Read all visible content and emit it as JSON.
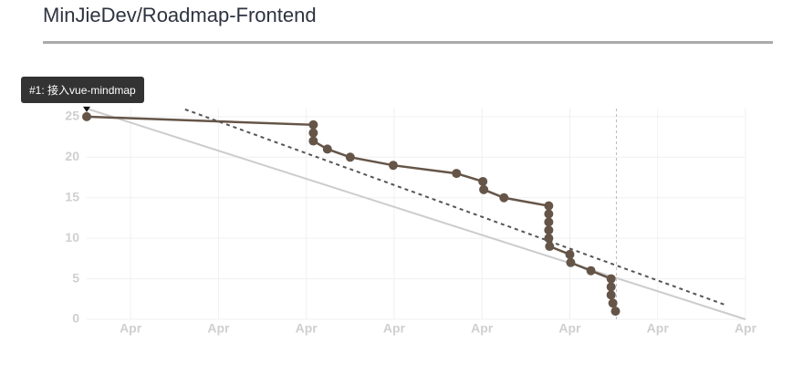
{
  "page_title": "MinJieDev/Roadmap-Frontend",
  "chart_data": {
    "type": "line",
    "annotation": "#1: 接入vue-mindmap",
    "xlim": [
      0.5,
      8
    ],
    "ylim": [
      0,
      26
    ],
    "xticks": [
      {
        "value": 1,
        "label": "Apr"
      },
      {
        "value": 2,
        "label": "Apr"
      },
      {
        "value": 3,
        "label": "Apr"
      },
      {
        "value": 4,
        "label": "Apr"
      },
      {
        "value": 5,
        "label": "Apr"
      },
      {
        "value": 6,
        "label": "Apr"
      },
      {
        "value": 7,
        "label": "Apr"
      },
      {
        "value": 8,
        "label": "Apr"
      }
    ],
    "yticks": [
      0,
      5,
      10,
      15,
      20,
      25
    ],
    "grid": true,
    "today": 6.53,
    "series": [
      {
        "color": "#cccccc",
        "style": "solid",
        "markers": false,
        "x": [
          0.5,
          8
        ],
        "values": [
          26,
          0
        ]
      },
      {
        "color": "#555555",
        "style": "dashed",
        "markers": false,
        "x": [
          1.62,
          7.79
        ],
        "values": [
          25.9,
          1.7
        ]
      },
      {
        "color": "#655548",
        "style": "solid",
        "markers": true,
        "x": [
          0.5,
          3.08,
          3.08,
          3.08,
          3.24,
          3.5,
          3.99,
          4.71,
          5.01,
          5.02,
          5.25,
          5.76,
          5.76,
          5.76,
          5.76,
          5.76,
          5.77,
          6.0,
          6.01,
          6.24,
          6.47,
          6.47,
          6.47,
          6.49,
          6.52
        ],
        "values": [
          25,
          24,
          23,
          22,
          21,
          20,
          19,
          18,
          17,
          16,
          15,
          14,
          13,
          12,
          11,
          10,
          9,
          8,
          7,
          6,
          5,
          4,
          3,
          2,
          1
        ]
      }
    ]
  }
}
